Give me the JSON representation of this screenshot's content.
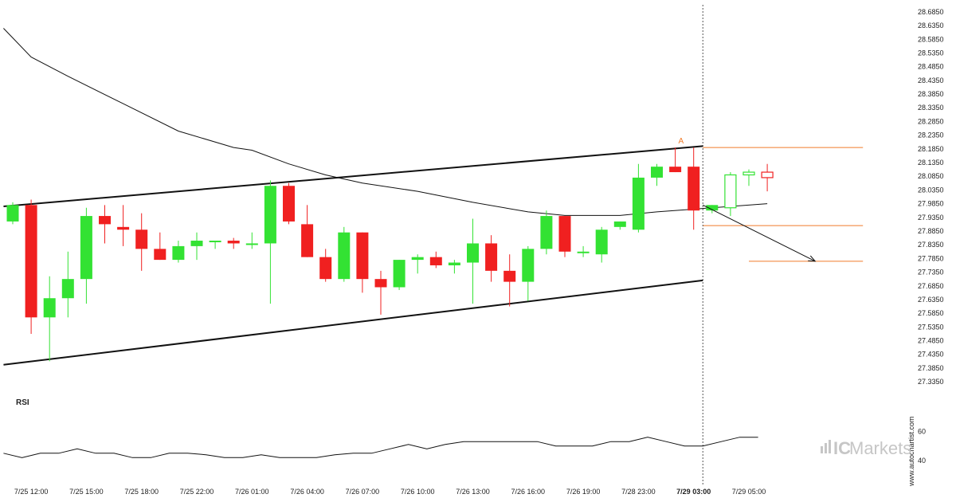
{
  "chart_data": {
    "type": "candlestick",
    "y_ticks": [
      "28.6850",
      "28.6350",
      "28.5850",
      "28.5350",
      "28.4850",
      "28.4350",
      "28.3850",
      "28.3350",
      "28.2850",
      "28.2350",
      "28.1850",
      "28.1350",
      "28.0850",
      "28.0350",
      "27.9850",
      "27.9350",
      "27.8850",
      "27.8350",
      "27.7850",
      "27.7350",
      "27.6850",
      "27.6350",
      "27.5850",
      "27.5350",
      "27.4850",
      "27.4350",
      "27.3850",
      "27.3350"
    ],
    "ylim": [
      27.315,
      28.705
    ],
    "x_ticks": [
      {
        "label": "7/25 12:00",
        "index": 1,
        "bold": false
      },
      {
        "label": "7/25 15:00",
        "index": 4,
        "bold": false
      },
      {
        "label": "7/25 18:00",
        "index": 7,
        "bold": false
      },
      {
        "label": "7/25 22:00",
        "index": 10,
        "bold": false
      },
      {
        "label": "7/26 01:00",
        "index": 13,
        "bold": false
      },
      {
        "label": "7/26 04:00",
        "index": 16,
        "bold": false
      },
      {
        "label": "7/26 07:00",
        "index": 19,
        "bold": false
      },
      {
        "label": "7/26 10:00",
        "index": 22,
        "bold": false
      },
      {
        "label": "7/26 13:00",
        "index": 25,
        "bold": false
      },
      {
        "label": "7/26 16:00",
        "index": 28,
        "bold": false
      },
      {
        "label": "7/26 19:00",
        "index": 31,
        "bold": false
      },
      {
        "label": "7/28 23:00",
        "index": 34,
        "bold": false
      },
      {
        "label": "7/29 03:00",
        "index": 37,
        "bold": true
      },
      {
        "label": "7/29 05:00",
        "index": 40,
        "bold": false
      }
    ],
    "candles": [
      {
        "o": 27.92,
        "h": 27.99,
        "l": 27.91,
        "c": 27.98
      },
      {
        "o": 27.98,
        "h": 28.0,
        "l": 27.51,
        "c": 27.57
      },
      {
        "o": 27.57,
        "h": 27.72,
        "l": 27.41,
        "c": 27.64
      },
      {
        "o": 27.64,
        "h": 27.81,
        "l": 27.57,
        "c": 27.71
      },
      {
        "o": 27.71,
        "h": 27.97,
        "l": 27.62,
        "c": 27.94
      },
      {
        "o": 27.94,
        "h": 27.98,
        "l": 27.84,
        "c": 27.91
      },
      {
        "o": 27.9,
        "h": 27.98,
        "l": 27.83,
        "c": 27.89
      },
      {
        "o": 27.89,
        "h": 27.95,
        "l": 27.74,
        "c": 27.82
      },
      {
        "o": 27.82,
        "h": 27.88,
        "l": 27.78,
        "c": 27.78
      },
      {
        "o": 27.78,
        "h": 27.85,
        "l": 27.77,
        "c": 27.83
      },
      {
        "o": 27.83,
        "h": 27.88,
        "l": 27.78,
        "c": 27.85
      },
      {
        "o": 27.85,
        "h": 27.85,
        "l": 27.82,
        "c": 27.85
      },
      {
        "o": 27.85,
        "h": 27.86,
        "l": 27.82,
        "c": 27.84
      },
      {
        "o": 27.84,
        "h": 27.88,
        "l": 27.82,
        "c": 27.84
      },
      {
        "o": 27.84,
        "h": 28.07,
        "l": 27.62,
        "c": 28.05
      },
      {
        "o": 28.05,
        "h": 28.06,
        "l": 27.91,
        "c": 27.92
      },
      {
        "o": 27.91,
        "h": 27.98,
        "l": 27.79,
        "c": 27.79
      },
      {
        "o": 27.79,
        "h": 27.82,
        "l": 27.7,
        "c": 27.71
      },
      {
        "o": 27.71,
        "h": 27.9,
        "l": 27.7,
        "c": 27.88
      },
      {
        "o": 27.88,
        "h": 27.88,
        "l": 27.66,
        "c": 27.71
      },
      {
        "o": 27.71,
        "h": 27.74,
        "l": 27.58,
        "c": 27.68
      },
      {
        "o": 27.68,
        "h": 27.78,
        "l": 27.67,
        "c": 27.78
      },
      {
        "o": 27.78,
        "h": 27.8,
        "l": 27.73,
        "c": 27.79
      },
      {
        "o": 27.79,
        "h": 27.81,
        "l": 27.75,
        "c": 27.76
      },
      {
        "o": 27.76,
        "h": 27.78,
        "l": 27.73,
        "c": 27.77
      },
      {
        "o": 27.77,
        "h": 27.93,
        "l": 27.62,
        "c": 27.84
      },
      {
        "o": 27.84,
        "h": 27.87,
        "l": 27.7,
        "c": 27.74
      },
      {
        "o": 27.74,
        "h": 27.8,
        "l": 27.61,
        "c": 27.7
      },
      {
        "o": 27.7,
        "h": 27.83,
        "l": 27.63,
        "c": 27.82
      },
      {
        "o": 27.82,
        "h": 27.96,
        "l": 27.8,
        "c": 27.94
      },
      {
        "o": 27.94,
        "h": 27.94,
        "l": 27.79,
        "c": 27.81
      },
      {
        "o": 27.81,
        "h": 27.83,
        "l": 27.79,
        "c": 27.81
      },
      {
        "o": 27.8,
        "h": 27.9,
        "l": 27.77,
        "c": 27.89
      },
      {
        "o": 27.9,
        "h": 27.92,
        "l": 27.89,
        "c": 27.92
      },
      {
        "o": 27.89,
        "h": 28.13,
        "l": 27.88,
        "c": 28.08
      },
      {
        "o": 28.08,
        "h": 28.13,
        "l": 28.05,
        "c": 28.12
      },
      {
        "o": 28.12,
        "h": 28.19,
        "l": 28.1,
        "c": 28.1
      },
      {
        "o": 28.12,
        "h": 28.19,
        "l": 27.89,
        "c": 27.96
      },
      {
        "o": 27.96,
        "h": 27.98,
        "l": 27.95,
        "c": 27.98
      }
    ],
    "projected_candles": [
      {
        "o": 27.97,
        "h": 28.1,
        "l": 27.94,
        "c": 28.09,
        "dir": "up"
      },
      {
        "o": 28.09,
        "h": 28.11,
        "l": 28.05,
        "c": 28.1,
        "dir": "up"
      },
      {
        "o": 28.1,
        "h": 28.13,
        "l": 28.03,
        "c": 28.08,
        "dir": "down"
      }
    ],
    "ma_line": [
      {
        "i": -0.5,
        "v": 28.625
      },
      {
        "i": 1,
        "v": 28.52
      },
      {
        "i": 3,
        "v": 28.45
      },
      {
        "i": 6,
        "v": 28.35
      },
      {
        "i": 9,
        "v": 28.25
      },
      {
        "i": 12,
        "v": 28.19
      },
      {
        "i": 13,
        "v": 28.18
      },
      {
        "i": 15,
        "v": 28.13
      },
      {
        "i": 17,
        "v": 28.09
      },
      {
        "i": 19,
        "v": 28.06
      },
      {
        "i": 22,
        "v": 28.03
      },
      {
        "i": 25,
        "v": 27.99
      },
      {
        "i": 28,
        "v": 27.955
      },
      {
        "i": 30,
        "v": 27.942
      },
      {
        "i": 33,
        "v": 27.942
      },
      {
        "i": 35,
        "v": 27.955
      },
      {
        "i": 37,
        "v": 27.965
      },
      {
        "i": 41,
        "v": 27.985
      }
    ],
    "channel_upper": {
      "i0": -0.5,
      "v0": 27.975,
      "i1": 37.5,
      "v1": 28.195
    },
    "channel_lower": {
      "i0": -0.5,
      "v0": 27.397,
      "i1": 37.5,
      "v1": 27.705
    },
    "forecast_arrow": {
      "i0": 37.5,
      "v0": 27.98,
      "i1": 43.6,
      "v1": 27.775
    },
    "levels": [
      {
        "price": 28.19,
        "from_index": 37.5,
        "to_index": 46.2,
        "color": "#f07b2a"
      },
      {
        "price": 27.905,
        "from_index": 37.5,
        "to_index": 46.2,
        "color": "#f07b2a"
      },
      {
        "price": 27.775,
        "from_index": 40,
        "to_index": 46.2,
        "color": "#f07b2a"
      }
    ],
    "point_label": {
      "text": "A",
      "index": 36.3,
      "price": 28.205
    },
    "now_index": 37.5,
    "rsi": {
      "title": "RSI",
      "y_ticks": [
        "60",
        "40"
      ],
      "ylim": [
        28,
        76
      ],
      "values": [
        45,
        42,
        45,
        45,
        48,
        45,
        45,
        42,
        42,
        45,
        45,
        44,
        42,
        42,
        44,
        42,
        42,
        42,
        44,
        45,
        45,
        48,
        51,
        48,
        51,
        53,
        53,
        53,
        53,
        53,
        50,
        50,
        50,
        53,
        53,
        56,
        53,
        50,
        50,
        53,
        56,
        56
      ]
    },
    "colors": {
      "up": "#33e233",
      "down": "#f02020",
      "wick": "#2a2a2a",
      "level": "#f07b2a"
    }
  },
  "watermark": {
    "site": "www.autochartist.com",
    "brand_prefix": "IC",
    "brand_suffix": "Markets"
  }
}
